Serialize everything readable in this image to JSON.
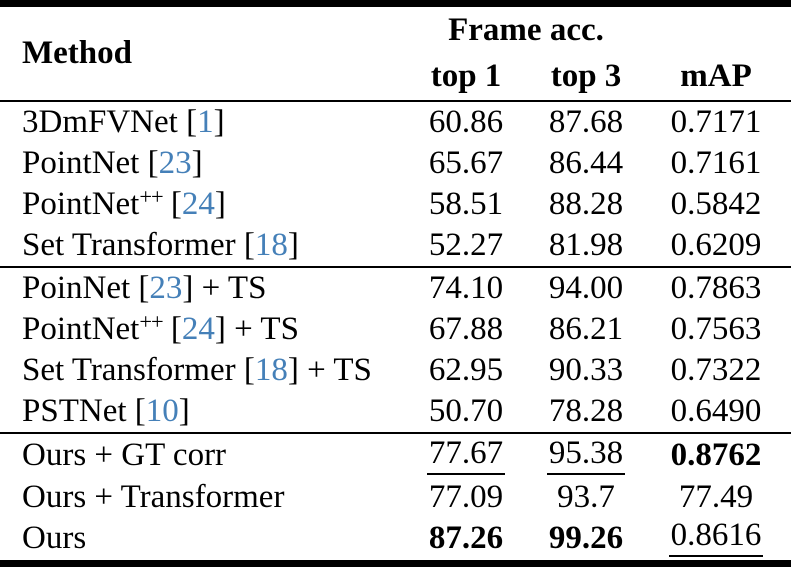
{
  "colors": {
    "citation_blue": "#4580b8",
    "text": "#000000",
    "background": "#ffffff"
  },
  "table": {
    "header": {
      "method": "Method",
      "group": "Frame acc.",
      "top1": "top 1",
      "top3": "top 3",
      "map": "mAP"
    },
    "groups": [
      {
        "rows": [
          {
            "pre": "3DmFVNet",
            "sup": "",
            "mid": " [",
            "cite": "1",
            "post": "]",
            "top1": "60.86",
            "top3": "87.68",
            "map": "0.7171"
          },
          {
            "pre": "PointNet",
            "sup": "",
            "mid": " [",
            "cite": "23",
            "post": "]",
            "top1": "65.67",
            "top3": "86.44",
            "map": "0.7161"
          },
          {
            "pre": "PointNet",
            "sup": "++",
            "mid": " [",
            "cite": "24",
            "post": "]",
            "top1": "58.51",
            "top3": "88.28",
            "map": "0.5842"
          },
          {
            "pre": "Set Transformer",
            "sup": "",
            "mid": " [",
            "cite": "18",
            "post": "]",
            "top1": "52.27",
            "top3": "81.98",
            "map": "0.6209"
          }
        ]
      },
      {
        "rows": [
          {
            "pre": "PoinNet",
            "sup": "",
            "mid": " [",
            "cite": "23",
            "post": "] + TS",
            "top1": "74.10",
            "top3": "94.00",
            "map": "0.7863"
          },
          {
            "pre": "PointNet",
            "sup": "++",
            "mid": " [",
            "cite": "24",
            "post": "] + TS",
            "top1": "67.88",
            "top3": "86.21",
            "map": "0.7563"
          },
          {
            "pre": "Set Transformer",
            "sup": "",
            "mid": " [",
            "cite": "18",
            "post": "] + TS",
            "top1": "62.95",
            "top3": "90.33",
            "map": "0.7322"
          },
          {
            "pre": "PSTNet",
            "sup": "",
            "mid": " [",
            "cite": "10",
            "post": "]",
            "top1": "50.70",
            "top3": "78.28",
            "map": "0.6490"
          }
        ]
      },
      {
        "rows": [
          {
            "pre": "Ours + GT corr",
            "sup": "",
            "mid": "",
            "cite": "",
            "post": "",
            "top1": "77.67",
            "top3": "95.38",
            "map": "0.8762"
          },
          {
            "pre": "Ours + Transformer",
            "sup": "",
            "mid": "",
            "cite": "",
            "post": "",
            "top1": "77.09",
            "top3": "93.7",
            "map": "77.49"
          },
          {
            "pre": "Ours",
            "sup": "",
            "mid": "",
            "cite": "",
            "post": "",
            "top1": "87.26",
            "top3": "99.26",
            "map": "0.8616"
          }
        ]
      }
    ]
  }
}
